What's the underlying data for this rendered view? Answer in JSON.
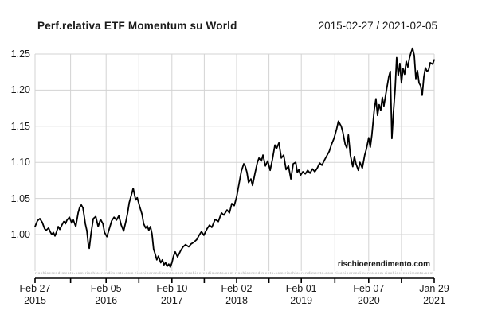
{
  "chart_data": {
    "type": "line",
    "title": "Perf.relativa ETF Momentum su World",
    "subtitle": "2015-02-27 / 2021-02-05",
    "watermark": "rischioerendimento.com",
    "xlabel": "",
    "ylabel": "",
    "ylim": [
      0.95,
      1.26
    ],
    "grid": true,
    "legend": "none",
    "y_ticks": [
      1.0,
      1.05,
      1.1,
      1.15,
      1.2,
      1.25
    ],
    "x_ticks": [
      {
        "month": "Feb 27",
        "year": "2015",
        "f": 0.0
      },
      {
        "month": "Feb 05",
        "year": "2016",
        "f": 0.178
      },
      {
        "month": "Feb 10",
        "year": "2017",
        "f": 0.343
      },
      {
        "month": "Feb 02",
        "year": "2018",
        "f": 0.505
      },
      {
        "month": "Feb 01",
        "year": "2019",
        "f": 0.667
      },
      {
        "month": "Feb 07",
        "year": "2020",
        "f": 0.836
      },
      {
        "month": "Jan 29",
        "year": "2021",
        "f": 1.0
      }
    ],
    "x_minor_ticks_f": [
      0.089,
      0.26,
      0.424,
      0.586,
      0.751,
      0.918
    ],
    "colors": {
      "line": "#000000",
      "grid": "#d3d3d3",
      "axis": "#000000",
      "text": "#1a1a1a",
      "watermark_band": "#b8b8b8"
    },
    "series": [
      {
        "name": "Perf.relativa ETF Momentum su World",
        "points": [
          [
            0.0,
            1.011
          ],
          [
            0.006,
            1.019
          ],
          [
            0.012,
            1.022
          ],
          [
            0.018,
            1.017
          ],
          [
            0.024,
            1.008
          ],
          [
            0.028,
            1.006
          ],
          [
            0.034,
            1.009
          ],
          [
            0.038,
            1.004
          ],
          [
            0.042,
            1.0
          ],
          [
            0.046,
            1.003
          ],
          [
            0.05,
            0.998
          ],
          [
            0.054,
            1.004
          ],
          [
            0.058,
            1.011
          ],
          [
            0.062,
            1.007
          ],
          [
            0.068,
            1.014
          ],
          [
            0.072,
            1.018
          ],
          [
            0.076,
            1.015
          ],
          [
            0.08,
            1.02
          ],
          [
            0.086,
            1.024
          ],
          [
            0.092,
            1.016
          ],
          [
            0.096,
            1.02
          ],
          [
            0.102,
            1.011
          ],
          [
            0.108,
            1.03
          ],
          [
            0.112,
            1.038
          ],
          [
            0.116,
            1.041
          ],
          [
            0.12,
            1.037
          ],
          [
            0.126,
            1.015
          ],
          [
            0.13,
            1.005
          ],
          [
            0.134,
            0.984
          ],
          [
            0.136,
            0.981
          ],
          [
            0.14,
            1.0
          ],
          [
            0.146,
            1.022
          ],
          [
            0.152,
            1.025
          ],
          [
            0.158,
            1.011
          ],
          [
            0.164,
            1.021
          ],
          [
            0.17,
            1.015
          ],
          [
            0.174,
            1.003
          ],
          [
            0.18,
            0.997
          ],
          [
            0.186,
            1.008
          ],
          [
            0.192,
            1.019
          ],
          [
            0.198,
            1.024
          ],
          [
            0.204,
            1.02
          ],
          [
            0.21,
            1.026
          ],
          [
            0.216,
            1.013
          ],
          [
            0.222,
            1.005
          ],
          [
            0.228,
            1.019
          ],
          [
            0.232,
            1.03
          ],
          [
            0.236,
            1.044
          ],
          [
            0.24,
            1.052
          ],
          [
            0.246,
            1.064
          ],
          [
            0.252,
            1.048
          ],
          [
            0.256,
            1.051
          ],
          [
            0.262,
            1.039
          ],
          [
            0.268,
            1.028
          ],
          [
            0.272,
            1.015
          ],
          [
            0.277,
            1.009
          ],
          [
            0.281,
            1.012
          ],
          [
            0.285,
            1.006
          ],
          [
            0.289,
            1.011
          ],
          [
            0.293,
            1.001
          ],
          [
            0.297,
            0.98
          ],
          [
            0.301,
            0.973
          ],
          [
            0.305,
            0.965
          ],
          [
            0.309,
            0.97
          ],
          [
            0.315,
            0.961
          ],
          [
            0.319,
            0.965
          ],
          [
            0.323,
            0.958
          ],
          [
            0.327,
            0.961
          ],
          [
            0.331,
            0.956
          ],
          [
            0.335,
            0.959
          ],
          [
            0.339,
            0.955
          ],
          [
            0.343,
            0.961
          ],
          [
            0.347,
            0.97
          ],
          [
            0.351,
            0.976
          ],
          [
            0.357,
            0.969
          ],
          [
            0.365,
            0.978
          ],
          [
            0.371,
            0.983
          ],
          [
            0.377,
            0.986
          ],
          [
            0.385,
            0.983
          ],
          [
            0.391,
            0.987
          ],
          [
            0.397,
            0.989
          ],
          [
            0.405,
            0.993
          ],
          [
            0.411,
            0.999
          ],
          [
            0.417,
            1.004
          ],
          [
            0.423,
            0.999
          ],
          [
            0.431,
            1.008
          ],
          [
            0.437,
            1.013
          ],
          [
            0.443,
            1.01
          ],
          [
            0.451,
            1.021
          ],
          [
            0.459,
            1.018
          ],
          [
            0.467,
            1.03
          ],
          [
            0.473,
            1.027
          ],
          [
            0.481,
            1.034
          ],
          [
            0.487,
            1.03
          ],
          [
            0.493,
            1.043
          ],
          [
            0.499,
            1.04
          ],
          [
            0.505,
            1.052
          ],
          [
            0.511,
            1.07
          ],
          [
            0.517,
            1.088
          ],
          [
            0.523,
            1.098
          ],
          [
            0.527,
            1.094
          ],
          [
            0.531,
            1.086
          ],
          [
            0.535,
            1.072
          ],
          [
            0.541,
            1.077
          ],
          [
            0.545,
            1.068
          ],
          [
            0.551,
            1.085
          ],
          [
            0.557,
            1.1
          ],
          [
            0.561,
            1.106
          ],
          [
            0.567,
            1.102
          ],
          [
            0.571,
            1.11
          ],
          [
            0.577,
            1.095
          ],
          [
            0.583,
            1.102
          ],
          [
            0.589,
            1.089
          ],
          [
            0.595,
            1.105
          ],
          [
            0.601,
            1.124
          ],
          [
            0.605,
            1.119
          ],
          [
            0.611,
            1.127
          ],
          [
            0.617,
            1.106
          ],
          [
            0.623,
            1.11
          ],
          [
            0.629,
            1.09
          ],
          [
            0.635,
            1.095
          ],
          [
            0.641,
            1.077
          ],
          [
            0.647,
            1.098
          ],
          [
            0.653,
            1.1
          ],
          [
            0.657,
            1.086
          ],
          [
            0.661,
            1.09
          ],
          [
            0.665,
            1.082
          ],
          [
            0.671,
            1.087
          ],
          [
            0.677,
            1.084
          ],
          [
            0.683,
            1.089
          ],
          [
            0.689,
            1.085
          ],
          [
            0.695,
            1.091
          ],
          [
            0.701,
            1.087
          ],
          [
            0.707,
            1.092
          ],
          [
            0.713,
            1.099
          ],
          [
            0.719,
            1.096
          ],
          [
            0.725,
            1.103
          ],
          [
            0.731,
            1.109
          ],
          [
            0.737,
            1.115
          ],
          [
            0.743,
            1.125
          ],
          [
            0.749,
            1.133
          ],
          [
            0.755,
            1.145
          ],
          [
            0.76,
            1.157
          ],
          [
            0.767,
            1.15
          ],
          [
            0.771,
            1.142
          ],
          [
            0.777,
            1.125
          ],
          [
            0.781,
            1.12
          ],
          [
            0.785,
            1.138
          ],
          [
            0.79,
            1.11
          ],
          [
            0.796,
            1.094
          ],
          [
            0.8,
            1.108
          ],
          [
            0.804,
            1.098
          ],
          [
            0.81,
            1.089
          ],
          [
            0.814,
            1.1
          ],
          [
            0.82,
            1.092
          ],
          [
            0.826,
            1.11
          ],
          [
            0.83,
            1.118
          ],
          [
            0.836,
            1.134
          ],
          [
            0.84,
            1.121
          ],
          [
            0.844,
            1.138
          ],
          [
            0.85,
            1.173
          ],
          [
            0.854,
            1.188
          ],
          [
            0.858,
            1.165
          ],
          [
            0.862,
            1.18
          ],
          [
            0.866,
            1.172
          ],
          [
            0.87,
            1.19
          ],
          [
            0.874,
            1.178
          ],
          [
            0.878,
            1.192
          ],
          [
            0.882,
            1.205
          ],
          [
            0.886,
            1.218
          ],
          [
            0.89,
            1.226
          ],
          [
            0.892,
            1.18
          ],
          [
            0.894,
            1.133
          ],
          [
            0.898,
            1.17
          ],
          [
            0.902,
            1.2
          ],
          [
            0.906,
            1.245
          ],
          [
            0.91,
            1.22
          ],
          [
            0.914,
            1.237
          ],
          [
            0.918,
            1.21
          ],
          [
            0.922,
            1.23
          ],
          [
            0.926,
            1.222
          ],
          [
            0.93,
            1.24
          ],
          [
            0.934,
            1.232
          ],
          [
            0.938,
            1.244
          ],
          [
            0.942,
            1.252
          ],
          [
            0.946,
            1.258
          ],
          [
            0.95,
            1.248
          ],
          [
            0.954,
            1.216
          ],
          [
            0.958,
            1.227
          ],
          [
            0.962,
            1.21
          ],
          [
            0.966,
            1.206
          ],
          [
            0.97,
            1.193
          ],
          [
            0.974,
            1.218
          ],
          [
            0.978,
            1.231
          ],
          [
            0.982,
            1.226
          ],
          [
            0.986,
            1.228
          ],
          [
            0.99,
            1.238
          ],
          [
            0.996,
            1.236
          ],
          [
            1.0,
            1.242
          ]
        ]
      }
    ]
  }
}
